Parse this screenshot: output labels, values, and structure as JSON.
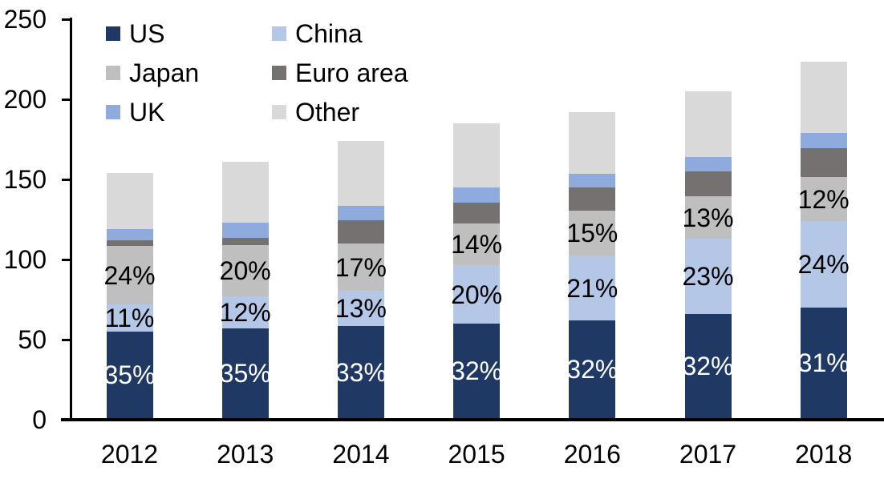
{
  "chart_data": {
    "type": "bar",
    "stacked": true,
    "categories": [
      "2012",
      "2013",
      "2014",
      "2015",
      "2016",
      "2017",
      "2018"
    ],
    "series": [
      {
        "name": "US",
        "color": "#1f3864",
        "values": [
          54,
          56,
          57.5,
          59,
          61,
          65,
          69
        ],
        "labels": [
          "35%",
          "35%",
          "33%",
          "32%",
          "32%",
          "32%",
          "31%"
        ],
        "label_color": "#ffffff"
      },
      {
        "name": "China",
        "color": "#b4c7e7",
        "values": [
          17,
          20,
          22,
          36.5,
          40.5,
          47,
          54
        ],
        "labels": [
          "11%",
          "12%",
          "13%",
          "20%",
          "21%",
          "23%",
          "24%"
        ],
        "label_color": "#000000"
      },
      {
        "name": "Japan",
        "color": "#bfbfbf",
        "values": [
          36.5,
          32,
          29.5,
          25.8,
          28,
          26.5,
          27.5
        ],
        "labels": [
          "24%",
          "20%",
          "17%",
          "14%",
          "15%",
          "13%",
          "12%"
        ],
        "label_color": "#000000"
      },
      {
        "name": "Euro area",
        "color": "#767171",
        "values": [
          3.7,
          4.6,
          14.5,
          13.2,
          14.5,
          15.5,
          18
        ],
        "labels": null,
        "label_color": null
      },
      {
        "name": "UK",
        "color": "#8faadc",
        "values": [
          7,
          9.2,
          9,
          9.5,
          8.5,
          9,
          9.5
        ],
        "labels": null,
        "label_color": null
      },
      {
        "name": "Other",
        "color": "#d9d9d9",
        "values": [
          34.8,
          38.2,
          40.5,
          40,
          38.5,
          41,
          44.5
        ],
        "labels": null,
        "label_color": null
      }
    ],
    "totals": [
      153,
      160,
      173,
      184,
      191,
      204,
      222.5
    ],
    "ylim": [
      0,
      250
    ],
    "yticks": [
      0,
      50,
      100,
      150,
      200,
      250
    ],
    "grid": false,
    "legend_position": "top-left",
    "legend_columns": 2,
    "axis_color": "#000000"
  }
}
